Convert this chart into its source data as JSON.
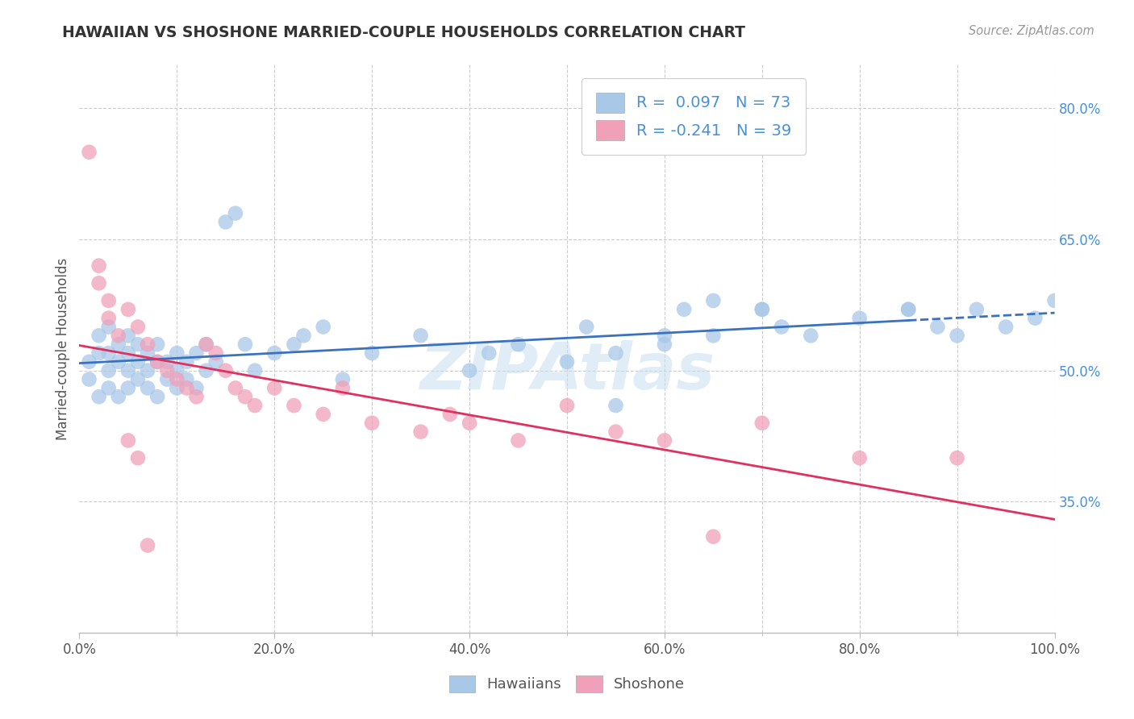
{
  "title": "HAWAIIAN VS SHOSHONE MARRIED-COUPLE HOUSEHOLDS CORRELATION CHART",
  "source_text": "Source: ZipAtlas.com",
  "ylabel": "Married-couple Households",
  "watermark": "ZIPAtlas",
  "xlim": [
    0,
    100
  ],
  "ylim": [
    20,
    85
  ],
  "yticks": [
    35,
    50,
    65,
    80
  ],
  "ytick_labels": [
    "35.0%",
    "50.0%",
    "65.0%",
    "80.0%"
  ],
  "xticks": [
    0,
    10,
    20,
    30,
    40,
    50,
    60,
    70,
    80,
    90,
    100
  ],
  "xtick_labels": [
    "0.0%",
    "",
    "20.0%",
    "",
    "40.0%",
    "",
    "60.0%",
    "",
    "80.0%",
    "",
    "100.0%"
  ],
  "hawaiian_color": "#a8c8e8",
  "shoshone_color": "#f0a0b8",
  "hawaiian_line_color": "#3a72c0",
  "shoshone_line_color": "#e03060",
  "hawaiian_R": 0.097,
  "hawaiian_N": 73,
  "shoshone_R": -0.241,
  "shoshone_N": 39,
  "background_color": "#ffffff",
  "grid_color": "#cccccc",
  "hawaiian_x": [
    1,
    1,
    2,
    2,
    2,
    3,
    3,
    3,
    3,
    4,
    4,
    4,
    5,
    5,
    5,
    5,
    6,
    6,
    6,
    7,
    7,
    7,
    8,
    8,
    8,
    9,
    9,
    10,
    10,
    10,
    11,
    11,
    12,
    12,
    13,
    13,
    14,
    15,
    16,
    17,
    18,
    20,
    22,
    23,
    25,
    27,
    30,
    35,
    40,
    42,
    45,
    50,
    52,
    55,
    60,
    62,
    65,
    70,
    72,
    75,
    80,
    85,
    88,
    90,
    92,
    95,
    98,
    100,
    55,
    60,
    65,
    70,
    85
  ],
  "hawaiian_y": [
    49,
    51,
    47,
    52,
    54,
    48,
    50,
    52,
    55,
    47,
    51,
    53,
    48,
    50,
    52,
    54,
    49,
    51,
    53,
    48,
    50,
    52,
    47,
    51,
    53,
    49,
    51,
    48,
    50,
    52,
    49,
    51,
    48,
    52,
    50,
    53,
    51,
    67,
    68,
    53,
    50,
    52,
    53,
    54,
    55,
    49,
    52,
    54,
    50,
    52,
    53,
    51,
    55,
    52,
    53,
    57,
    58,
    57,
    55,
    54,
    56,
    57,
    55,
    54,
    57,
    55,
    56,
    58,
    46,
    54,
    54,
    57,
    57
  ],
  "shoshone_x": [
    1,
    2,
    2,
    3,
    3,
    4,
    5,
    6,
    7,
    8,
    9,
    10,
    11,
    12,
    13,
    14,
    15,
    16,
    17,
    18,
    20,
    22,
    25,
    27,
    30,
    35,
    38,
    40,
    45,
    50,
    55,
    60,
    65,
    70,
    80,
    90,
    5,
    6,
    7
  ],
  "shoshone_y": [
    75,
    62,
    60,
    58,
    56,
    54,
    57,
    55,
    53,
    51,
    50,
    49,
    48,
    47,
    53,
    52,
    50,
    48,
    47,
    46,
    48,
    46,
    45,
    48,
    44,
    43,
    45,
    44,
    42,
    46,
    43,
    42,
    31,
    44,
    40,
    40,
    42,
    40,
    30
  ]
}
